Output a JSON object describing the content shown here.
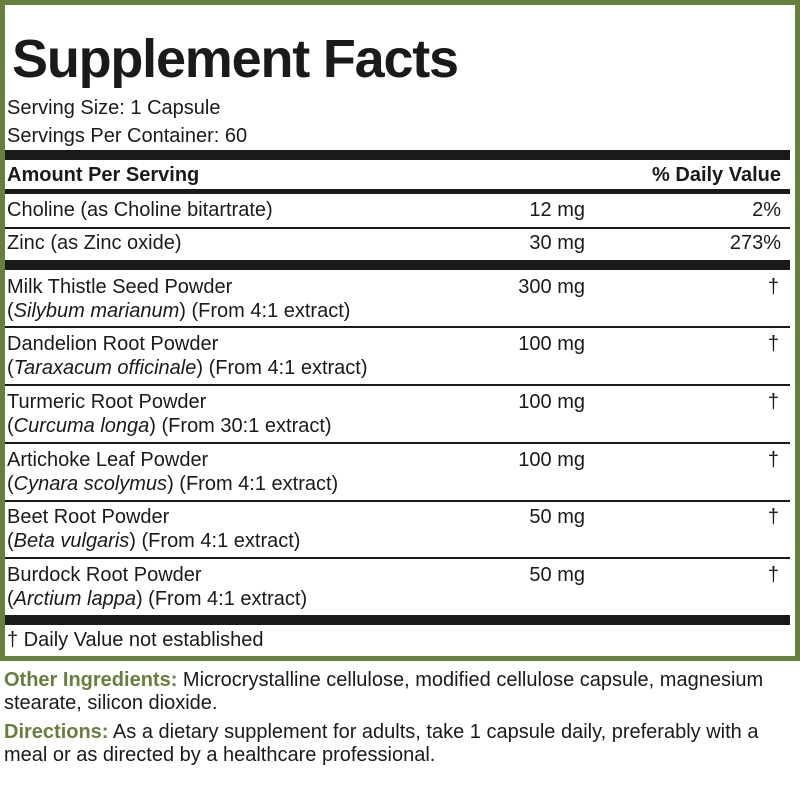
{
  "title": "Supplement Facts",
  "serving_size": "Serving Size: 1 Capsule",
  "servings_per_container": "Servings Per Container: 60",
  "header": {
    "amount": "Amount Per Serving",
    "daily_value": "% Daily Value"
  },
  "nutrients": [
    {
      "name": "Choline (as Choline bitartrate)",
      "amount": "12 mg",
      "dv": "2%"
    },
    {
      "name": "Zinc (as Zinc oxide)",
      "amount": "30 mg",
      "dv": "273%"
    }
  ],
  "ingredients": [
    {
      "name": "Milk Thistle Seed Powder",
      "latin": "Silybum marianum",
      "extract": " (From 4:1 extract)",
      "amount": "300 mg",
      "dv": "†"
    },
    {
      "name": "Dandelion Root Powder",
      "latin": "Taraxacum officinale",
      "extract": " (From 4:1 extract)",
      "amount": "100 mg",
      "dv": "†"
    },
    {
      "name": "Turmeric Root Powder",
      "latin": "Curcuma longa",
      "extract": " (From 30:1 extract)",
      "amount": "100 mg",
      "dv": "†"
    },
    {
      "name": "Artichoke Leaf Powder",
      "latin": "Cynara scolymus",
      "extract": " (From 4:1 extract)",
      "amount": "100 mg",
      "dv": "†"
    },
    {
      "name": "Beet Root Powder",
      "latin": "Beta vulgaris",
      "extract": " (From 4:1 extract)",
      "amount": "50 mg",
      "dv": "†"
    },
    {
      "name": "Burdock Root Powder",
      "latin": "Arctium lappa",
      "extract": " (From 4:1 extract)",
      "amount": "50 mg",
      "dv": "†"
    }
  ],
  "footnote": "† Daily Value not established",
  "other_ingredients": {
    "label": "Other Ingredients:",
    "text": " Microcrystalline cellulose, modified cellulose capsule, magnesium stearate, silicon dioxide."
  },
  "directions": {
    "label": "Directions:",
    "text": " As a dietary supplement for adults, take 1 capsule daily, preferably with a meal or as directed by a healthcare professional."
  },
  "colors": {
    "accent": "#677f3d",
    "text": "#1a1a1a"
  }
}
